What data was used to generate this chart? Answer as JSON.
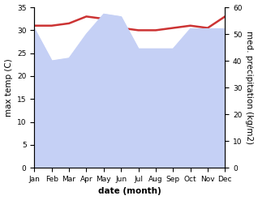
{
  "months": [
    "Jan",
    "Feb",
    "Mar",
    "Apr",
    "May",
    "Jun",
    "Jul",
    "Aug",
    "Sep",
    "Oct",
    "Nov",
    "Dec"
  ],
  "temp": [
    31.0,
    31.0,
    31.5,
    33.0,
    32.5,
    30.5,
    30.0,
    30.0,
    30.5,
    31.0,
    30.5,
    33.0
  ],
  "precip": [
    52.0,
    40.0,
    41.0,
    50.0,
    57.5,
    56.5,
    44.5,
    44.5,
    44.5,
    52.0,
    52.0,
    52.0
  ],
  "temp_color": "#cc3333",
  "precip_fill_color": "#c5d0f5",
  "background_color": "#ffffff",
  "xlabel": "date (month)",
  "ylabel_left": "max temp (C)",
  "ylabel_right": "med. precipitation (kg/m2)",
  "ylim_left": [
    0,
    35
  ],
  "ylim_right": [
    0,
    60
  ],
  "yticks_left": [
    0,
    5,
    10,
    15,
    20,
    25,
    30,
    35
  ],
  "yticks_right": [
    0,
    10,
    20,
    30,
    40,
    50,
    60
  ],
  "label_fontsize": 7.5,
  "tick_fontsize": 6.5
}
